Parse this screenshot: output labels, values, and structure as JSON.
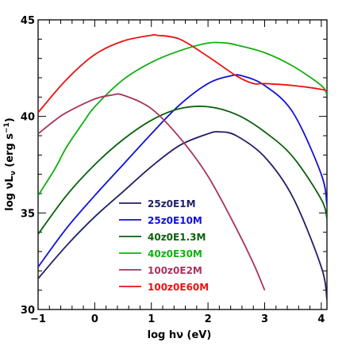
{
  "chart_data": {
    "type": "line",
    "title": "",
    "xlabel_main": "log h",
    "xlabel_sym": "ν",
    "xlabel_unit": " (eV)",
    "ylabel_main": "log ",
    "ylabel_nu": "ν",
    "ylabel_L": "L",
    "ylabel_sub": "ν",
    "ylabel_unit": " (erg s",
    "ylabel_exp": "−1",
    "ylabel_close": ")",
    "xlim": [
      -1,
      4.1
    ],
    "ylim": [
      30,
      45
    ],
    "xticks": [
      -1,
      0,
      1,
      2,
      3,
      4
    ],
    "xtick_labels": [
      "−1",
      "0",
      "1",
      "2",
      "3",
      "4"
    ],
    "yticks": [
      30,
      35,
      40,
      45
    ],
    "ytick_labels": [
      "30",
      "35",
      "40",
      "45"
    ],
    "legend_position": "lower-center",
    "series": [
      {
        "name": "25z0E1M",
        "color": "#1f1f66",
        "x": [
          -1,
          -0.5,
          0,
          0.5,
          1,
          1.5,
          2,
          2.2,
          2.5,
          3,
          3.5,
          4,
          4.1
        ],
        "y": [
          31.6,
          33.3,
          34.8,
          36.1,
          37.4,
          38.5,
          39.1,
          39.2,
          39.0,
          37.9,
          35.8,
          32.2,
          30.5
        ]
      },
      {
        "name": "25z0E10M",
        "color": "#1111dd",
        "x": [
          -1,
          -0.5,
          0,
          0.5,
          1,
          1.5,
          2,
          2.4,
          2.6,
          3,
          3.5,
          4,
          4.1
        ],
        "y": [
          32.2,
          34.2,
          35.9,
          37.5,
          39.1,
          40.6,
          41.7,
          42.1,
          42.1,
          41.6,
          40.2,
          37.0,
          35.4
        ]
      },
      {
        "name": "40z0E1.3M",
        "color": "#0b5f0b",
        "x": [
          -1,
          -0.5,
          0,
          0.5,
          1,
          1.5,
          2,
          2.5,
          3,
          3.5,
          4,
          4.1
        ],
        "y": [
          33.9,
          35.9,
          37.5,
          38.8,
          39.8,
          40.4,
          40.5,
          40.1,
          39.2,
          37.9,
          35.7,
          34.7
        ]
      },
      {
        "name": "40z0E30M",
        "color": "#11b011",
        "x": [
          -1,
          -0.7,
          -0.5,
          -0.2,
          0,
          0.5,
          1,
          1.5,
          2,
          2.3,
          2.5,
          3,
          3.5,
          4,
          4.1
        ],
        "y": [
          35.9,
          37.3,
          38.4,
          39.7,
          40.5,
          41.9,
          42.8,
          43.4,
          43.8,
          43.8,
          43.7,
          43.3,
          42.6,
          41.6,
          41.1
        ]
      },
      {
        "name": "100z0E2M",
        "color": "#a8335e",
        "x": [
          -1,
          -0.7,
          -0.5,
          0,
          0.3,
          0.5,
          1,
          1.5,
          2,
          2.5,
          2.8,
          3
        ],
        "y": [
          39.1,
          39.8,
          40.2,
          40.9,
          41.1,
          41.1,
          40.4,
          38.9,
          36.9,
          34.2,
          32.4,
          31.0
        ]
      },
      {
        "name": "100z0E60M",
        "color": "#ee1111",
        "x": [
          -1,
          -0.5,
          0,
          0.5,
          1,
          1.1,
          1.5,
          2,
          2.5,
          2.8,
          3,
          3.5,
          4,
          4.1
        ],
        "y": [
          40.2,
          41.9,
          43.2,
          43.9,
          44.2,
          44.2,
          44.0,
          43.1,
          42.1,
          41.7,
          41.7,
          41.6,
          41.4,
          41.3
        ]
      }
    ]
  }
}
